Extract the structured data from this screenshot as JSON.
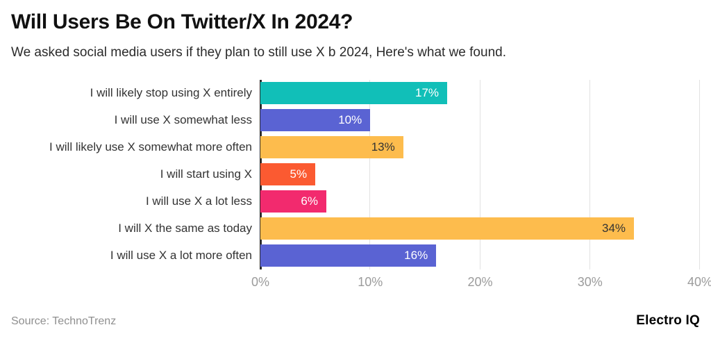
{
  "header": {
    "title": "Will Users Be On Twitter/X In 2024?",
    "subtitle": "We asked social media users if they plan to still use X b 2024, Here's what we found."
  },
  "chart_data": {
    "type": "bar",
    "orientation": "horizontal",
    "title": "Will Users Be On Twitter/X In 2024?",
    "categories": [
      "I will likely stop using X entirely",
      "I will use X somewhat less",
      "I will likely use X somewhat more often",
      "I will start using X",
      "I will use X a lot less",
      "I will X the same as today",
      "I will use X a lot more often"
    ],
    "values": [
      17,
      10,
      13,
      5,
      6,
      34,
      16
    ],
    "value_labels": [
      "17%",
      "10%",
      "13%",
      "5%",
      "6%",
      "34%",
      "16%"
    ],
    "bar_colors": [
      "#11BFB8",
      "#5A63D3",
      "#FDBC4D",
      "#FB5A31",
      "#F22A6E",
      "#FDBC4D",
      "#5A63D3"
    ],
    "value_label_colors": [
      "#ffffff",
      "#ffffff",
      "#333333",
      "#ffffff",
      "#ffffff",
      "#333333",
      "#ffffff"
    ],
    "xlabel": "",
    "ylabel": "",
    "xlim": [
      0,
      40
    ],
    "x_ticks": [
      "0%",
      "10%",
      "20%",
      "30%",
      "40%"
    ],
    "x_tick_values": [
      0,
      10,
      20,
      30,
      40
    ],
    "grid": true,
    "gridline_color": "#e2e2e2",
    "axis_line_color": "#2d2d2d",
    "tick_color": "#9b9b9b",
    "legend": false
  },
  "footer": {
    "source": "Source: TechnoTrenz",
    "brand": "Electro IQ"
  }
}
